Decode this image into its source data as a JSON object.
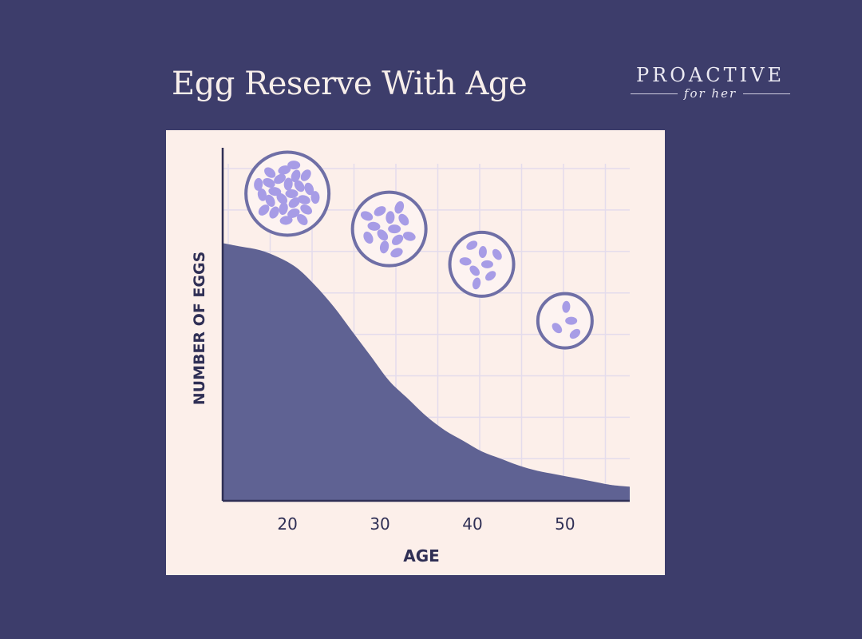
{
  "title": "Egg Reserve With Age",
  "brand": {
    "name": "PROACTIVE",
    "tagline": "for her"
  },
  "colors": {
    "background": "#3d3d6b",
    "panel": "#fcefea",
    "area_fill": "#5f6293",
    "axis": "#2f2f55",
    "grid": "#e4dcec",
    "follicle_ring": "#6f6fa6",
    "egg": "#a79ce6",
    "label": "#2f2f55"
  },
  "chart_data": {
    "type": "area",
    "title": "Egg Reserve With Age",
    "xlabel": "AGE",
    "ylabel": "NUMBER OF EGGS",
    "x_ticks": [
      20,
      30,
      40,
      50
    ],
    "xlim": [
      13,
      57
    ],
    "ylim": [
      0,
      100
    ],
    "grid": true,
    "series": [
      {
        "x": [
          13,
          15,
          17,
          19,
          21,
          23,
          25,
          27,
          29,
          31,
          33,
          35,
          37,
          39,
          41,
          43,
          45,
          47,
          49,
          51,
          53,
          55,
          57
        ],
        "values": [
          73,
          72,
          71,
          69,
          66,
          61,
          55,
          48,
          41,
          34,
          29,
          24,
          20,
          17,
          14,
          12,
          10,
          8.5,
          7.5,
          6.5,
          5.5,
          4.5,
          4
        ]
      }
    ],
    "annotations": [
      {
        "type": "follicle-icon",
        "age": 20,
        "level": 87,
        "egg_count": 26
      },
      {
        "type": "follicle-icon",
        "age": 31,
        "level": 77,
        "egg_count": 13
      },
      {
        "type": "follicle-icon",
        "age": 41,
        "level": 67,
        "egg_count": 8
      },
      {
        "type": "follicle-icon",
        "age": 50,
        "level": 51,
        "egg_count": 4
      }
    ]
  }
}
